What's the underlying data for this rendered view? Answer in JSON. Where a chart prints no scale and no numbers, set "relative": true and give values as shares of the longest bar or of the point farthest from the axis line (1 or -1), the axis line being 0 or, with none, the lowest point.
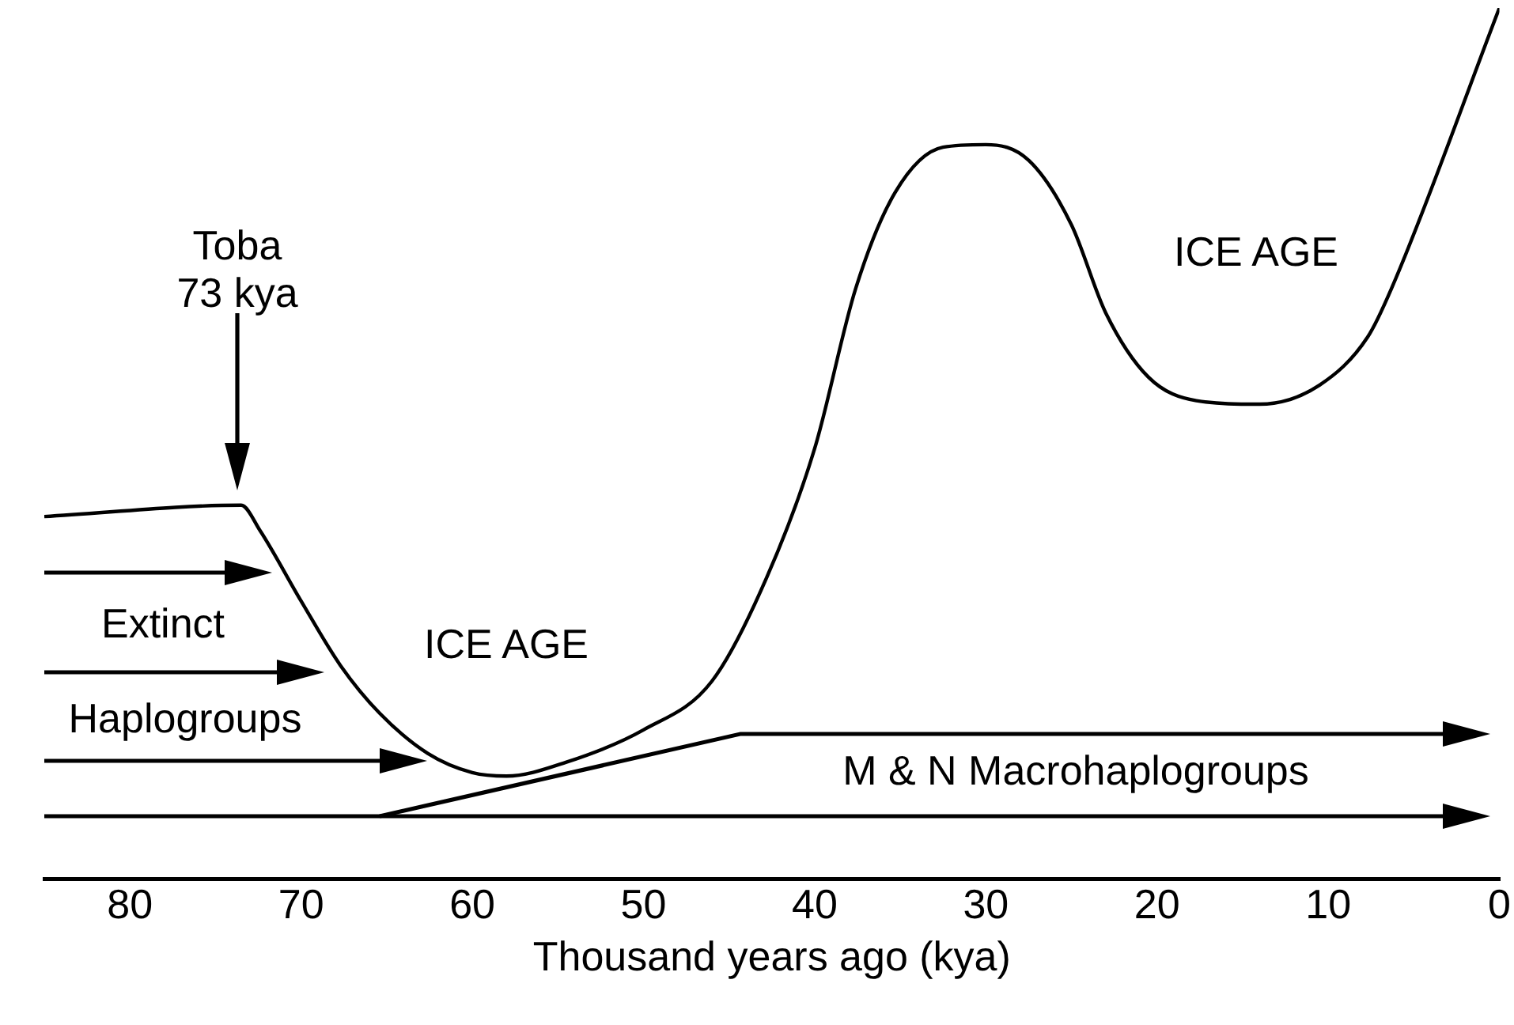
{
  "chart_data": {
    "type": "line",
    "relative": true,
    "xlabel": "Thousand years ago (kya)",
    "xlim": [
      85,
      0
    ],
    "xticks": [
      80,
      70,
      60,
      50,
      40,
      30,
      20,
      10,
      0
    ],
    "grid": false,
    "legend": false,
    "series": [
      {
        "color": "#000000",
        "x": [
          85,
          73.5,
          72.4,
          70,
          67.7,
          65.4,
          62.6,
          60,
          58,
          54.5,
          50,
          46,
          42.8,
          40,
          37.6,
          35.3,
          32.5,
          30,
          27.5,
          25,
          23,
          20.5,
          17.7,
          14,
          10.5,
          7.7,
          6.3,
          0
        ],
        "values": [
          0.416,
          0.429,
          0.4,
          0.319,
          0.245,
          0.19,
          0.144,
          0.122,
          0.118,
          0.134,
          0.171,
          0.227,
          0.346,
          0.494,
          0.678,
          0.788,
          0.84,
          0.843,
          0.825,
          0.751,
          0.65,
          0.576,
          0.549,
          0.545,
          0.567,
          0.622,
          0.678,
          1
        ]
      }
    ],
    "annotations": [
      "Toba 73 kya",
      "ICE AGE",
      "ICE AGE",
      "Extinct",
      "Haplogroups",
      "M & N Macrohaplogroups"
    ]
  }
}
